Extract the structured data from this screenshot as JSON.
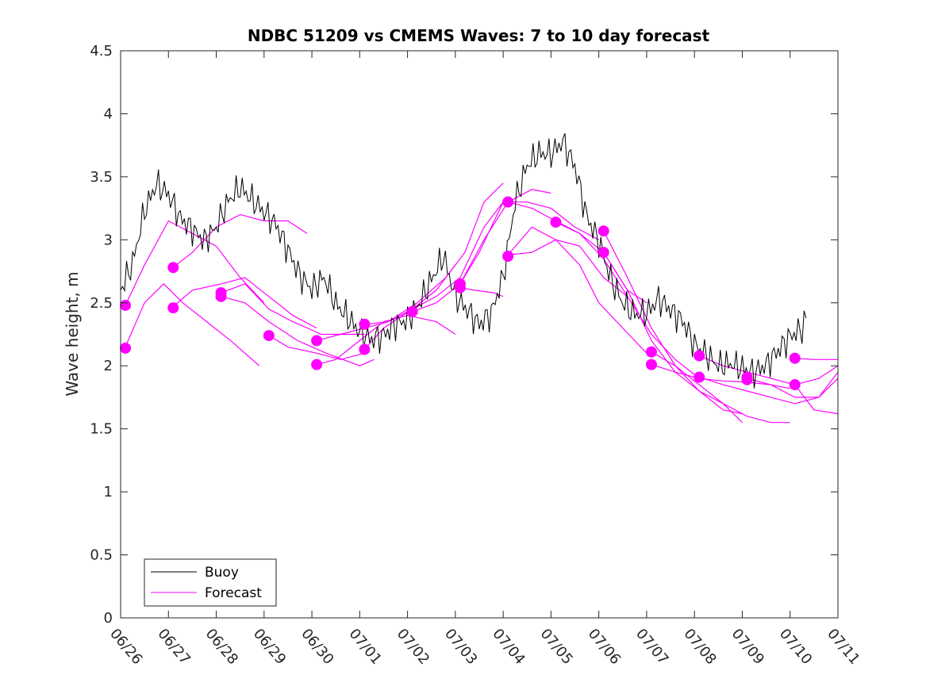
{
  "chart_data": {
    "type": "line",
    "title": "NDBC 51209 vs CMEMS Waves: 7 to 10 day forecast",
    "xlabel": "",
    "ylabel": "Wave height, m",
    "xlim": [
      0,
      15
    ],
    "ylim": [
      0,
      4.5
    ],
    "x_ticks": [
      0,
      1,
      2,
      3,
      4,
      5,
      6,
      7,
      8,
      9,
      10,
      11,
      12,
      13,
      14,
      15
    ],
    "x_tick_labels": [
      "06/26",
      "06/27",
      "06/28",
      "06/29",
      "06/30",
      "07/01",
      "07/02",
      "07/03",
      "07/04",
      "07/05",
      "07/06",
      "07/07",
      "07/08",
      "07/09",
      "07/10",
      "07/11"
    ],
    "y_ticks": [
      0,
      0.5,
      1,
      1.5,
      2,
      2.5,
      3,
      3.5,
      4,
      4.5
    ],
    "y_tick_labels": [
      "0",
      "0.5",
      "1",
      "1.5",
      "2",
      "2.5",
      "3",
      "3.5",
      "4",
      "4.5"
    ],
    "grid": false,
    "legend_position": "bottom-left",
    "legend": [
      "Buoy",
      "Forecast"
    ],
    "colors": {
      "buoy": "#000000",
      "forecast": "#ff00ff"
    },
    "buoy": {
      "name": "Buoy",
      "x": [
        0.0,
        0.25,
        0.5,
        0.75,
        1.0,
        1.25,
        1.5,
        1.75,
        2.0,
        2.25,
        2.5,
        2.75,
        3.0,
        3.25,
        3.5,
        3.75,
        4.0,
        4.25,
        4.5,
        4.75,
        5.0,
        5.25,
        5.5,
        5.75,
        6.0,
        6.25,
        6.5,
        6.75,
        7.0,
        7.25,
        7.5,
        7.75,
        8.0,
        8.25,
        8.5,
        8.75,
        9.0,
        9.25,
        9.5,
        9.75,
        10.0,
        10.25,
        10.5,
        10.75,
        11.0,
        11.25,
        11.5,
        11.75,
        12.0,
        12.25,
        12.5,
        12.75,
        13.0,
        13.25,
        13.5,
        13.75,
        14.0,
        14.25,
        14.35
      ],
      "y": [
        2.6,
        2.8,
        3.2,
        3.4,
        3.3,
        3.1,
        3.0,
        2.9,
        3.0,
        3.2,
        3.3,
        3.2,
        3.1,
        3.0,
        2.8,
        2.6,
        2.5,
        2.6,
        2.4,
        2.3,
        2.2,
        2.15,
        2.2,
        2.3,
        2.35,
        2.5,
        2.7,
        2.9,
        2.6,
        2.5,
        2.4,
        2.5,
        2.8,
        3.4,
        3.7,
        3.8,
        3.8,
        3.9,
        3.7,
        3.3,
        3.1,
        2.8,
        2.6,
        2.5,
        2.5,
        2.6,
        2.5,
        2.4,
        2.2,
        2.1,
        2.0,
        2.0,
        1.95,
        1.9,
        1.95,
        2.05,
        2.15,
        2.2,
        2.3
      ]
    },
    "forecast_series": [
      {
        "x": [
          0.1,
          0.5,
          1.0,
          1.5,
          2.0,
          2.5,
          3.0
        ],
        "y": [
          2.48,
          2.8,
          3.15,
          3.05,
          2.95,
          2.7,
          2.5
        ]
      },
      {
        "x": [
          0.1,
          0.5,
          0.9,
          1.3,
          1.8,
          2.3,
          2.9
        ],
        "y": [
          2.15,
          2.5,
          2.65,
          2.5,
          2.35,
          2.2,
          2.0
        ]
      },
      {
        "x": [
          1.1,
          1.5,
          2.0,
          2.5,
          3.0,
          3.5,
          3.9
        ],
        "y": [
          2.78,
          2.9,
          3.1,
          3.2,
          3.15,
          3.15,
          3.05
        ]
      },
      {
        "x": [
          1.1,
          1.5,
          2.1,
          2.6,
          3.1,
          3.6,
          4.1
        ],
        "y": [
          2.47,
          2.6,
          2.65,
          2.7,
          2.55,
          2.4,
          2.3
        ]
      },
      {
        "x": [
          2.1,
          2.6,
          3.1,
          3.6,
          4.2,
          4.8,
          5.1
        ],
        "y": [
          2.58,
          2.65,
          2.45,
          2.35,
          2.25,
          2.25,
          2.25
        ]
      },
      {
        "x": [
          2.1,
          2.6,
          3.1,
          3.7,
          4.3,
          5.0,
          5.3
        ],
        "y": [
          2.55,
          2.5,
          2.35,
          2.2,
          2.1,
          2.0,
          2.05
        ]
      },
      {
        "x": [
          3.1,
          3.5,
          4.1,
          4.6,
          5.1
        ],
        "y": [
          2.24,
          2.15,
          2.1,
          2.05,
          2.1
        ]
      },
      {
        "x": [
          4.1,
          4.6,
          5.1,
          5.6,
          6.1,
          6.6,
          7.0
        ],
        "y": [
          2.2,
          2.25,
          2.3,
          2.35,
          2.45,
          2.6,
          2.8
        ]
      },
      {
        "x": [
          4.1,
          4.5,
          5.0,
          5.5,
          6.0,
          6.6,
          7.0
        ],
        "y": [
          2.01,
          2.05,
          2.2,
          2.35,
          2.4,
          2.35,
          2.25
        ]
      },
      {
        "x": [
          5.1,
          5.6,
          6.2,
          6.8,
          7.2,
          7.6,
          8.0
        ],
        "y": [
          2.33,
          2.35,
          2.5,
          2.7,
          2.9,
          3.3,
          3.45
        ]
      },
      {
        "x": [
          5.1,
          5.5,
          6.1,
          6.6,
          7.1,
          7.6,
          8.0
        ],
        "y": [
          2.13,
          2.3,
          2.45,
          2.55,
          2.7,
          3.1,
          3.3
        ]
      },
      {
        "x": [
          6.1,
          6.6,
          7.1,
          7.6,
          8.1,
          8.6,
          9.0
        ],
        "y": [
          2.43,
          2.5,
          2.65,
          3.0,
          3.3,
          3.4,
          3.37
        ]
      },
      {
        "x": [
          7.1,
          7.5,
          8.0,
          8.5,
          9.0,
          9.5,
          10.0
        ],
        "y": [
          2.65,
          2.9,
          3.3,
          3.3,
          3.25,
          3.1,
          3.0
        ]
      },
      {
        "x": [
          7.1,
          7.4,
          7.8,
          8.0
        ],
        "y": [
          2.62,
          2.6,
          2.58,
          2.55
        ]
      },
      {
        "x": [
          8.1,
          8.6,
          9.1,
          9.6,
          10.1,
          10.6,
          11.0
        ],
        "y": [
          3.3,
          3.25,
          3.15,
          3.05,
          2.9,
          2.6,
          2.5
        ]
      },
      {
        "x": [
          8.1,
          8.6,
          9.1,
          9.6,
          10.1,
          10.6
        ],
        "y": [
          2.88,
          2.9,
          3.0,
          2.95,
          2.7,
          2.55
        ]
      },
      {
        "x": [
          8.1,
          8.6,
          9.1,
          9.6,
          10.0,
          10.5,
          11.0
        ],
        "y": [
          2.88,
          3.1,
          3.0,
          2.8,
          2.5,
          2.3,
          2.1
        ]
      },
      {
        "x": [
          9.1,
          9.6,
          10.1,
          10.6,
          11.1,
          11.6,
          12.1
        ],
        "y": [
          3.14,
          3.05,
          2.85,
          2.55,
          2.25,
          2.05,
          1.9
        ]
      },
      {
        "x": [
          10.1,
          10.6,
          11.1,
          11.6,
          12.1,
          12.6,
          13.0
        ],
        "y": [
          3.07,
          2.7,
          2.3,
          2.0,
          1.8,
          1.65,
          1.62
        ]
      },
      {
        "x": [
          10.1,
          10.6,
          11.1,
          11.6,
          12.1,
          12.6,
          13.0
        ],
        "y": [
          2.9,
          2.6,
          2.2,
          1.95,
          1.8,
          1.7,
          1.55
        ]
      },
      {
        "x": [
          11.1,
          11.6,
          12.1,
          12.6,
          13.1,
          13.6,
          14.0
        ],
        "y": [
          2.11,
          2.0,
          1.85,
          1.7,
          1.6,
          1.55,
          1.55
        ]
      },
      {
        "x": [
          11.1,
          11.6,
          12.1,
          12.6,
          13.1,
          13.6,
          14.0
        ],
        "y": [
          2.01,
          1.95,
          1.9,
          1.88,
          1.87,
          1.85,
          1.82
        ]
      },
      {
        "x": [
          12.1,
          12.6,
          13.1,
          13.6,
          14.1,
          14.6,
          15.0
        ],
        "y": [
          2.08,
          2.0,
          1.95,
          1.9,
          1.85,
          1.9,
          2.0
        ]
      },
      {
        "x": [
          12.1,
          12.6,
          13.1,
          13.6,
          14.1,
          14.6,
          15.0
        ],
        "y": [
          1.91,
          1.85,
          1.8,
          1.75,
          1.7,
          1.75,
          1.9
        ]
      },
      {
        "x": [
          13.1,
          13.6,
          14.1,
          14.6,
          15.0
        ],
        "y": [
          1.9,
          1.85,
          1.75,
          1.75,
          1.95
        ]
      },
      {
        "x": [
          14.1,
          14.5,
          15.0
        ],
        "y": [
          2.06,
          2.05,
          2.05
        ]
      },
      {
        "x": [
          14.1,
          14.5,
          15.0
        ],
        "y": [
          1.85,
          1.65,
          1.62
        ]
      }
    ],
    "forecast_markers": {
      "x": [
        0.1,
        0.1,
        1.1,
        1.1,
        2.1,
        2.1,
        3.1,
        4.1,
        4.1,
        5.1,
        5.1,
        6.1,
        7.1,
        7.1,
        8.1,
        8.1,
        9.1,
        10.1,
        10.1,
        11.1,
        11.1,
        12.1,
        12.1,
        13.1,
        13.1,
        14.1,
        14.1
      ],
      "y": [
        2.48,
        2.14,
        2.78,
        2.46,
        2.58,
        2.55,
        2.24,
        2.2,
        2.01,
        2.33,
        2.13,
        2.43,
        2.65,
        2.62,
        3.3,
        2.87,
        3.14,
        3.07,
        2.9,
        2.11,
        2.01,
        2.08,
        1.91,
        1.91,
        1.89,
        2.06,
        1.85
      ]
    }
  }
}
